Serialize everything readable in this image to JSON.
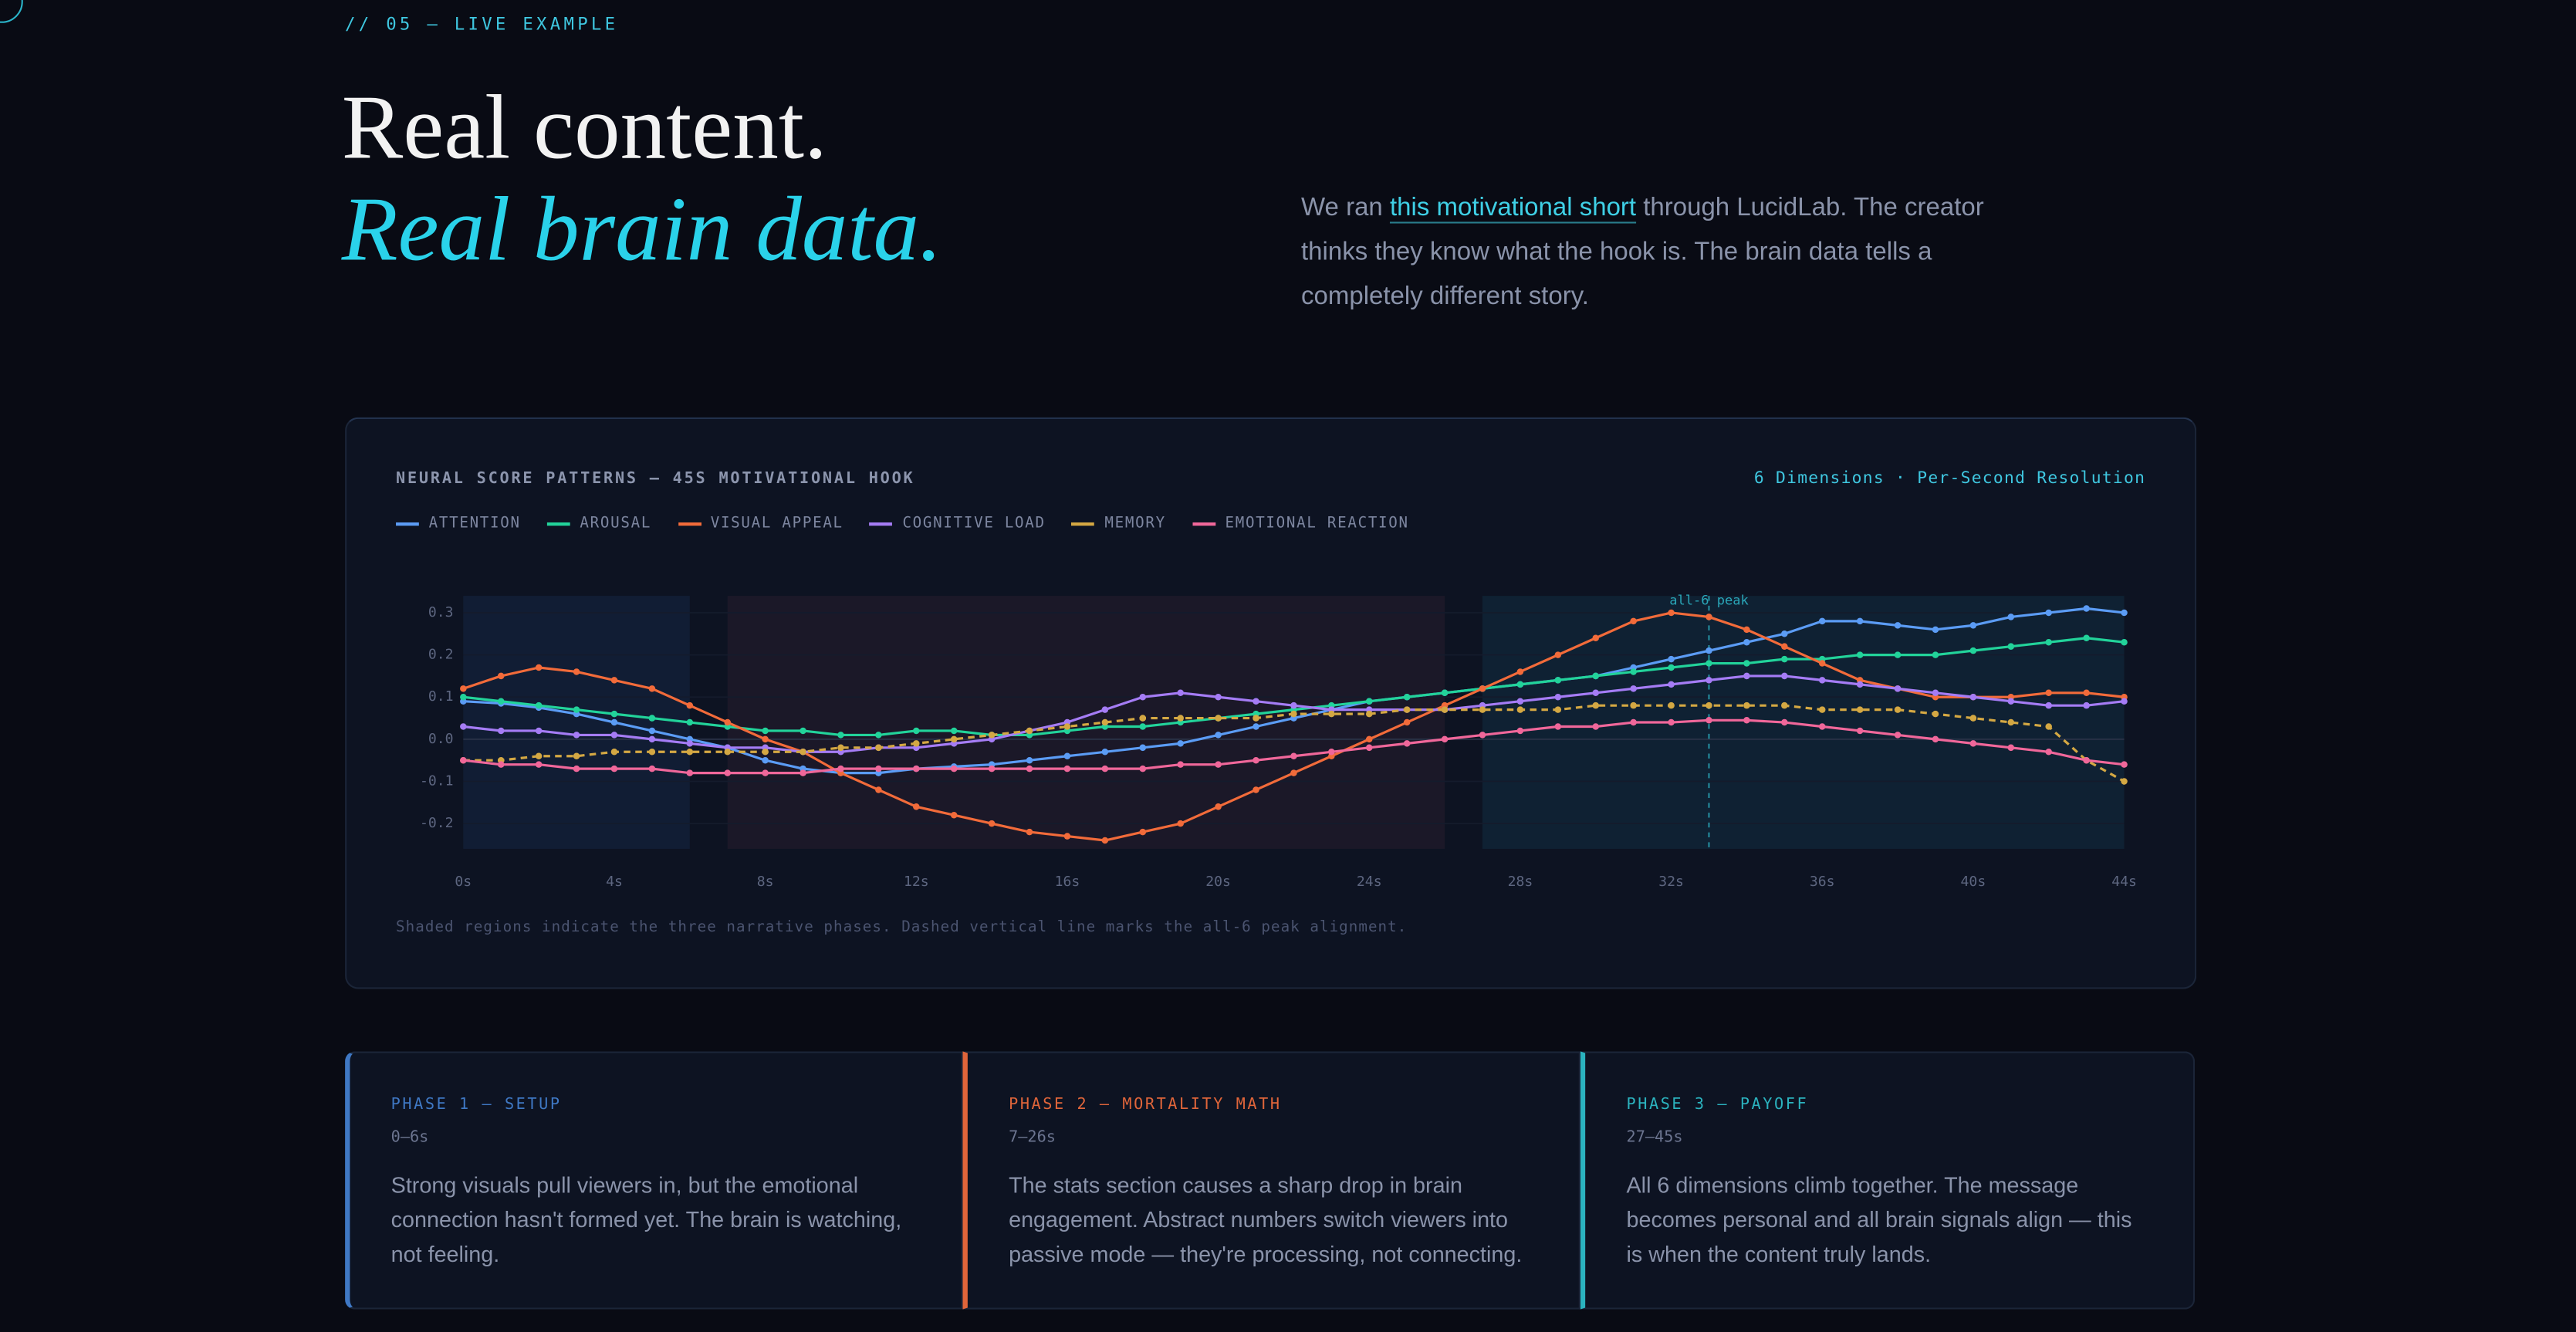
{
  "header": {
    "eyebrow": "// 05 — LIVE EXAMPLE",
    "title_line1": "Real content.",
    "title_line2": "Real brain data.",
    "intro": {
      "before": "We ran ",
      "link": "this motivational short",
      "after": " through LucidLab. The creator thinks they know what the hook is. The brain data tells a completely different story."
    }
  },
  "chart_data": {
    "type": "line",
    "title": "NEURAL SCORE PATTERNS — 45S MOTIVATIONAL HOOK",
    "subtitle": "6 Dimensions · Per-Second Resolution",
    "caption": "Shaded regions indicate the three narrative phases. Dashed vertical line marks the all-6 peak alignment.",
    "x": [
      0,
      1,
      2,
      3,
      4,
      5,
      6,
      7,
      8,
      9,
      10,
      11,
      12,
      13,
      14,
      15,
      16,
      17,
      18,
      19,
      20,
      21,
      22,
      23,
      24,
      25,
      26,
      27,
      28,
      29,
      30,
      31,
      32,
      33,
      34,
      35,
      36,
      37,
      38,
      39,
      40,
      41,
      42,
      43,
      44
    ],
    "xlim": [
      0,
      44
    ],
    "xticks": [
      {
        "value": 0,
        "label": "0s"
      },
      {
        "value": 4,
        "label": "4s"
      },
      {
        "value": 8,
        "label": "8s"
      },
      {
        "value": 12,
        "label": "12s"
      },
      {
        "value": 16,
        "label": "16s"
      },
      {
        "value": 20,
        "label": "20s"
      },
      {
        "value": 24,
        "label": "24s"
      },
      {
        "value": 28,
        "label": "28s"
      },
      {
        "value": 32,
        "label": "32s"
      },
      {
        "value": 36,
        "label": "36s"
      },
      {
        "value": 40,
        "label": "40s"
      },
      {
        "value": 44,
        "label": "44s"
      }
    ],
    "ylim": [
      -0.26,
      0.34
    ],
    "yticks": [
      -0.2,
      -0.1,
      {
        "value": 0,
        "label": "0.0"
      },
      0.1,
      0.2,
      0.3
    ],
    "grid": true,
    "regions": [
      {
        "start": 0,
        "end": 6,
        "color": "rgba(45,85,150,0.16)"
      },
      {
        "start": 7,
        "end": 26,
        "color": "rgba(110,60,75,0.14)"
      },
      {
        "start": 27,
        "end": 44,
        "color": "rgba(30,115,140,0.16)"
      }
    ],
    "annotation": {
      "x": 33,
      "label": "all-6 peak",
      "color": "#2aa6b8"
    },
    "series": [
      {
        "name": "ATTENTION",
        "color": "#5b9cf5",
        "dashed": false,
        "values": [
          0.09,
          0.085,
          0.075,
          0.06,
          0.04,
          0.02,
          0.0,
          -0.02,
          -0.05,
          -0.07,
          -0.08,
          -0.08,
          -0.07,
          -0.065,
          -0.06,
          -0.05,
          -0.04,
          -0.03,
          -0.02,
          -0.01,
          0.01,
          0.03,
          0.05,
          0.07,
          0.09,
          0.1,
          0.11,
          0.12,
          0.13,
          0.14,
          0.15,
          0.17,
          0.19,
          0.21,
          0.23,
          0.25,
          0.28,
          0.28,
          0.27,
          0.26,
          0.27,
          0.29,
          0.3,
          0.31,
          0.3
        ]
      },
      {
        "name": "AROUSAL",
        "color": "#22d39a",
        "dashed": false,
        "values": [
          0.1,
          0.09,
          0.08,
          0.07,
          0.06,
          0.05,
          0.04,
          0.03,
          0.02,
          0.02,
          0.01,
          0.01,
          0.02,
          0.02,
          0.01,
          0.01,
          0.02,
          0.03,
          0.03,
          0.04,
          0.05,
          0.06,
          0.07,
          0.08,
          0.09,
          0.1,
          0.11,
          0.12,
          0.13,
          0.14,
          0.15,
          0.16,
          0.17,
          0.18,
          0.18,
          0.19,
          0.19,
          0.2,
          0.2,
          0.2,
          0.21,
          0.22,
          0.23,
          0.24,
          0.23
        ]
      },
      {
        "name": "VISUAL APPEAL",
        "color": "#f26b3a",
        "dashed": false,
        "values": [
          0.12,
          0.15,
          0.17,
          0.16,
          0.14,
          0.12,
          0.08,
          0.04,
          0.0,
          -0.03,
          -0.08,
          -0.12,
          -0.16,
          -0.18,
          -0.2,
          -0.22,
          -0.23,
          -0.24,
          -0.22,
          -0.2,
          -0.16,
          -0.12,
          -0.08,
          -0.04,
          0.0,
          0.04,
          0.08,
          0.12,
          0.16,
          0.2,
          0.24,
          0.28,
          0.3,
          0.29,
          0.26,
          0.22,
          0.18,
          0.14,
          0.12,
          0.1,
          0.1,
          0.1,
          0.11,
          0.11,
          0.1
        ]
      },
      {
        "name": "COGNITIVE LOAD",
        "color": "#a57cf5",
        "dashed": false,
        "values": [
          0.03,
          0.02,
          0.02,
          0.01,
          0.01,
          0.0,
          -0.01,
          -0.02,
          -0.02,
          -0.03,
          -0.03,
          -0.02,
          -0.02,
          -0.01,
          0.0,
          0.02,
          0.04,
          0.07,
          0.1,
          0.11,
          0.1,
          0.09,
          0.08,
          0.07,
          0.07,
          0.07,
          0.07,
          0.08,
          0.09,
          0.1,
          0.11,
          0.12,
          0.13,
          0.14,
          0.15,
          0.15,
          0.14,
          0.13,
          0.12,
          0.11,
          0.1,
          0.09,
          0.08,
          0.08,
          0.09
        ]
      },
      {
        "name": "MEMORY",
        "color": "#d4a843",
        "dashed": true,
        "values": [
          -0.05,
          -0.05,
          -0.04,
          -0.04,
          -0.03,
          -0.03,
          -0.03,
          -0.03,
          -0.03,
          -0.03,
          -0.02,
          -0.02,
          -0.01,
          0.0,
          0.01,
          0.02,
          0.03,
          0.04,
          0.05,
          0.05,
          0.05,
          0.05,
          0.06,
          0.06,
          0.06,
          0.07,
          0.07,
          0.07,
          0.07,
          0.07,
          0.08,
          0.08,
          0.08,
          0.08,
          0.08,
          0.08,
          0.07,
          0.07,
          0.07,
          0.06,
          0.05,
          0.04,
          0.03,
          -0.05,
          -0.1
        ]
      },
      {
        "name": "EMOTIONAL REACTION",
        "color": "#f0679a",
        "dashed": false,
        "values": [
          -0.05,
          -0.06,
          -0.06,
          -0.07,
          -0.07,
          -0.07,
          -0.08,
          -0.08,
          -0.08,
          -0.08,
          -0.07,
          -0.07,
          -0.07,
          -0.07,
          -0.07,
          -0.07,
          -0.07,
          -0.07,
          -0.07,
          -0.06,
          -0.06,
          -0.05,
          -0.04,
          -0.03,
          -0.02,
          -0.01,
          0.0,
          0.01,
          0.02,
          0.03,
          0.03,
          0.04,
          0.04,
          0.045,
          0.045,
          0.04,
          0.03,
          0.02,
          0.01,
          0.0,
          -0.01,
          -0.02,
          -0.03,
          -0.05,
          -0.06
        ]
      }
    ]
  },
  "phases": [
    {
      "title": "PHASE 1 — SETUP",
      "range": "0–6s",
      "color": "#3f78c4",
      "text": "Strong visuals pull viewers in, but the emotional connection hasn't formed yet. The brain is watching, not feeling."
    },
    {
      "title": "PHASE 2 — MORTALITY MATH",
      "range": "7–26s",
      "color": "#e0653a",
      "text": "The stats section causes a sharp drop in brain engagement. Abstract numbers switch viewers into passive mode — they're processing, not connecting."
    },
    {
      "title": "PHASE 3 — PAYOFF",
      "range": "27–45s",
      "color": "#2bb3bf",
      "text": "All 6 dimensions climb together. The message becomes personal and all brain signals align — this is when the content truly lands."
    }
  ]
}
